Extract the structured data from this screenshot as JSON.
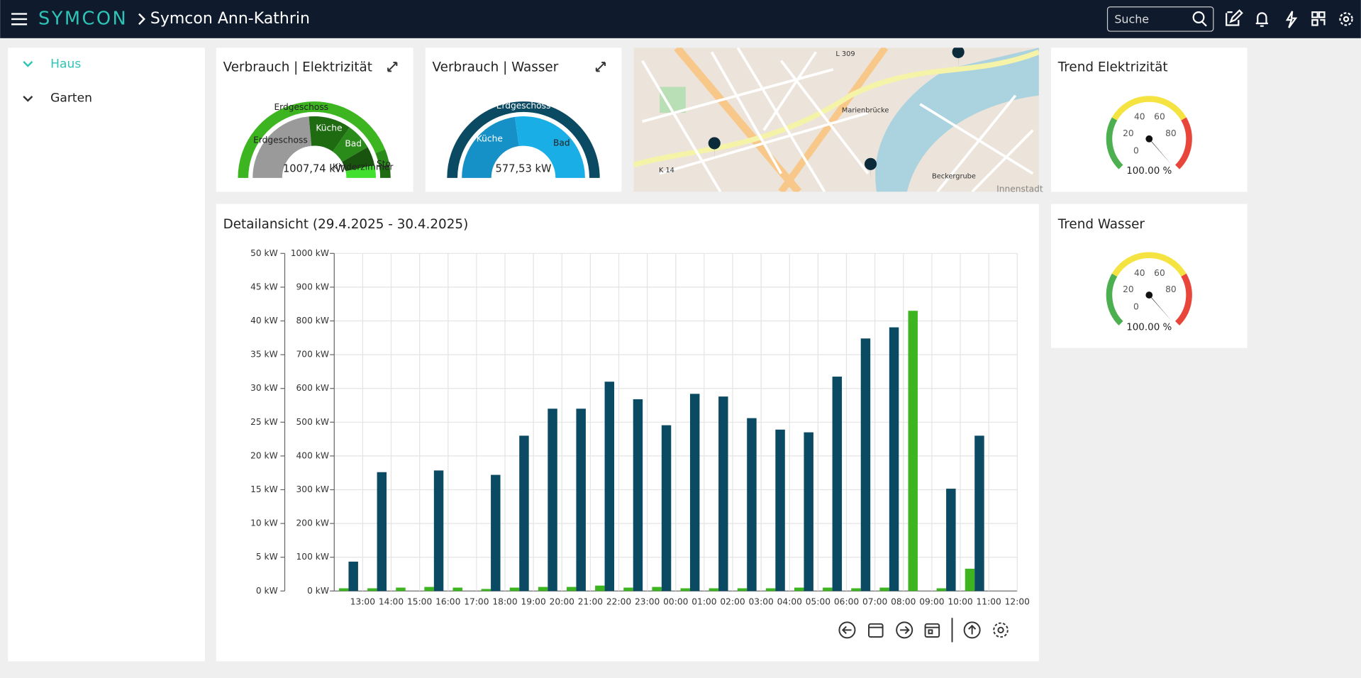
{
  "header": {
    "brand": "SYMCON",
    "title": "Symcon Ann-Kathrin",
    "search_placeholder": "Suche"
  },
  "sidebar": {
    "items": [
      "Haus",
      "Garten"
    ]
  },
  "electricity": {
    "title": "Verbrauch | Elektrizität",
    "labels": [
      "Erdgeschoss",
      "Erdgeschoss",
      "Küche",
      "Bad",
      "Kinderzimmer",
      "Sto"
    ],
    "total": "1007,74 kW"
  },
  "water": {
    "title": "Verbrauch | Wasser",
    "labels": [
      "Erdgeschoss",
      "Küche",
      "Bad"
    ],
    "total": "577,53 kW"
  },
  "map": {
    "labels": [
      "L 309",
      "Marienbrücke",
      "K 14",
      "Beckergrube",
      "Innenstadt"
    ]
  },
  "trend_electricity": {
    "title": "Trend Elektrizität",
    "ticks": [
      0,
      20,
      40,
      60,
      80
    ],
    "value": "100.00 %"
  },
  "trend_water": {
    "title": "Trend Wasser",
    "ticks": [
      0,
      20,
      40,
      60,
      80
    ],
    "value": "100.00 %"
  },
  "chart_data": {
    "type": "bar",
    "title": "Detailansicht (29.4.2025 - 30.4.2025)",
    "categories": [
      "13:00",
      "14:00",
      "15:00",
      "16:00",
      "17:00",
      "18:00",
      "19:00",
      "20:00",
      "21:00",
      "22:00",
      "23:00",
      "00:00",
      "01:00",
      "02:00",
      "03:00",
      "04:00",
      "05:00",
      "06:00",
      "07:00",
      "08:00",
      "09:00",
      "10:00",
      "11:00",
      "12:00"
    ],
    "series": [
      {
        "color": "#3cb521",
        "values": [
          0.4,
          0.4,
          0.5,
          0.6,
          0.5,
          0.3,
          0.5,
          0.6,
          0.6,
          0.8,
          0.5,
          0.6,
          0.4,
          0.4,
          0.4,
          0.4,
          0.5,
          0.5,
          0.4,
          0.5,
          41.5,
          0.4,
          3.3,
          null
        ]
      },
      {
        "color": "#0b4a63",
        "axis": "y2",
        "values": [
          87,
          352,
          null,
          357,
          null,
          344,
          460,
          540,
          540,
          620,
          568,
          491,
          584,
          576,
          512,
          478,
          470,
          635,
          748,
          781,
          null,
          303,
          460,
          null
        ]
      }
    ],
    "ylim": [
      0,
      50
    ],
    "yticks": [
      {
        "value": 0,
        "label": "0 kW"
      },
      {
        "value": 5,
        "label": "5 kW"
      },
      {
        "value": 10,
        "label": "10 kW"
      },
      {
        "value": 15,
        "label": "15 kW"
      },
      {
        "value": 20,
        "label": "20 kW"
      },
      {
        "value": 25,
        "label": "25 kW"
      },
      {
        "value": 30,
        "label": "30 kW"
      },
      {
        "value": 35,
        "label": "35 kW"
      },
      {
        "value": 40,
        "label": "40 kW"
      },
      {
        "value": 45,
        "label": "45 kW"
      },
      {
        "value": 50,
        "label": "50 kW"
      }
    ],
    "y2lim": [
      0,
      1000
    ],
    "y2ticks": [
      {
        "value": 0,
        "label": "0 kW"
      },
      {
        "value": 100,
        "label": "100 kW"
      },
      {
        "value": 200,
        "label": "200 kW"
      },
      {
        "value": 300,
        "label": "300 kW"
      },
      {
        "value": 400,
        "label": "400 kW"
      },
      {
        "value": 500,
        "label": "500 kW"
      },
      {
        "value": 600,
        "label": "600 kW"
      },
      {
        "value": 700,
        "label": "700 kW"
      },
      {
        "value": 800,
        "label": "800 kW"
      },
      {
        "value": 900,
        "label": "900 kW"
      },
      {
        "value": 1000,
        "label": "1000 kW"
      }
    ],
    "grid": true
  }
}
